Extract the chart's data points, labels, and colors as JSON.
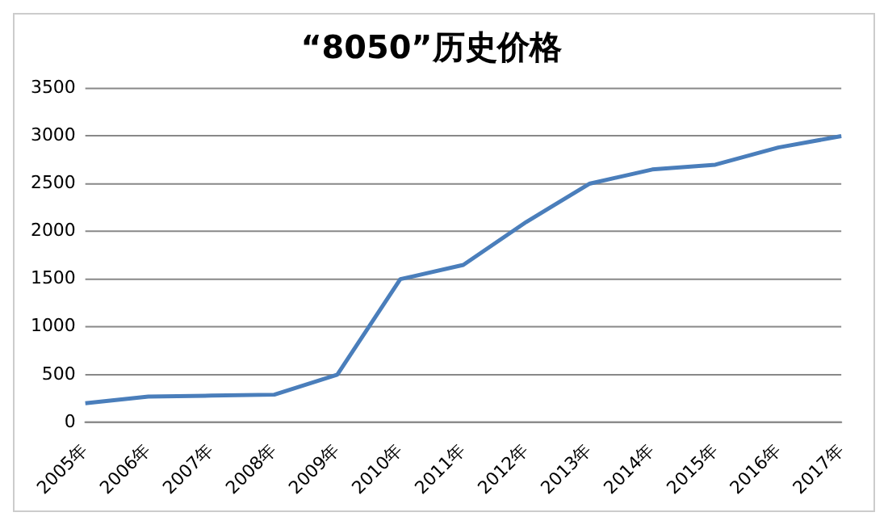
{
  "chart_data": {
    "type": "line",
    "title": "“8050”历史价格",
    "categories": [
      "2005年",
      "2006年",
      "2007年",
      "2008年",
      "2009年",
      "2010年",
      "2011年",
      "2012年",
      "2013年",
      "2014年",
      "2015年",
      "2016年",
      "2017年"
    ],
    "series": [
      {
        "color": "#4a7ebb",
        "values": [
          200,
          270,
          280,
          290,
          500,
          1500,
          1650,
          2100,
          2500,
          2650,
          2700,
          2880,
          3000
        ]
      }
    ],
    "ylim": [
      0,
      3500
    ],
    "yticks": [
      0,
      500,
      1000,
      1500,
      2000,
      2500,
      3000,
      3500
    ],
    "grid": "y",
    "legend": false,
    "marker": "none",
    "line_style": "solid"
  }
}
